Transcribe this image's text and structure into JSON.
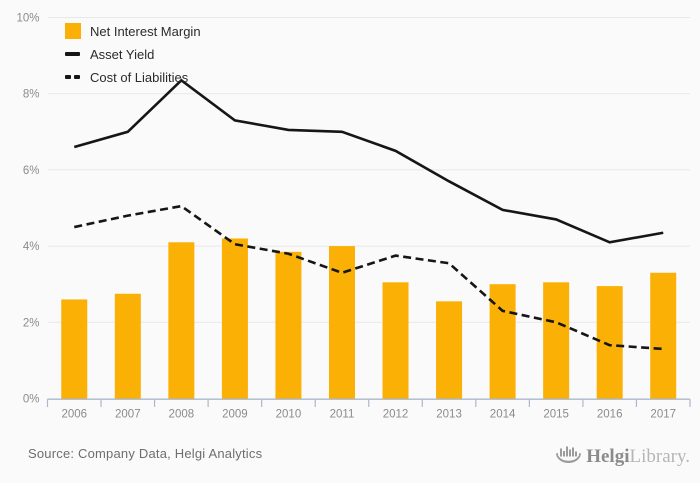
{
  "chart_data": {
    "type": "bar",
    "subtype": "bar-with-lines",
    "title": "",
    "categories": [
      "2006",
      "2007",
      "2008",
      "2009",
      "2010",
      "2011",
      "2012",
      "2013",
      "2014",
      "2015",
      "2016",
      "2017"
    ],
    "series": [
      {
        "name": "Net Interest Margin",
        "kind": "bar",
        "marker": "square",
        "values": [
          2.6,
          2.75,
          4.1,
          4.2,
          3.85,
          4.0,
          3.05,
          2.55,
          3.0,
          3.05,
          2.95,
          3.3
        ]
      },
      {
        "name": "Asset Yield",
        "kind": "line",
        "marker": "line",
        "line_style": "solid",
        "values": [
          6.6,
          7.0,
          8.35,
          7.3,
          7.05,
          7.0,
          6.5,
          5.7,
          4.95,
          4.7,
          4.1,
          4.35
        ]
      },
      {
        "name": "Cost of Liabilities",
        "kind": "line",
        "marker": "dash",
        "line_style": "dashed",
        "values": [
          4.5,
          4.8,
          5.05,
          4.05,
          3.8,
          3.3,
          3.75,
          3.55,
          2.3,
          2.0,
          1.4,
          1.3
        ]
      }
    ],
    "unit": "%",
    "ylim": [
      0,
      10
    ],
    "y_ticks": [
      {
        "value": 0,
        "label": "0%"
      },
      {
        "value": 2,
        "label": "2%"
      },
      {
        "value": 4,
        "label": "4%"
      },
      {
        "value": 6,
        "label": "6%"
      },
      {
        "value": 8,
        "label": "8%"
      },
      {
        "value": 10,
        "label": "10%"
      }
    ],
    "grid": true,
    "legend_position": "top-left"
  },
  "colors": {
    "bar": "#fab005",
    "line": "#161616",
    "grid": "#e8e8e8",
    "axis": "#abb8cb",
    "tick_text": "#8b8b8b",
    "legend_text": "#2b2b2b",
    "background": "#fafafa",
    "source_text": "#6e6e6e",
    "logo_primary": "#8b8b8b",
    "logo_secondary": "#b6b6b6",
    "logo_icon": "#9b9b9b"
  },
  "footer": {
    "source_text": "Source: Company Data, Helgi Analytics",
    "logo_primary": "Helgi",
    "logo_secondary": "Library."
  }
}
